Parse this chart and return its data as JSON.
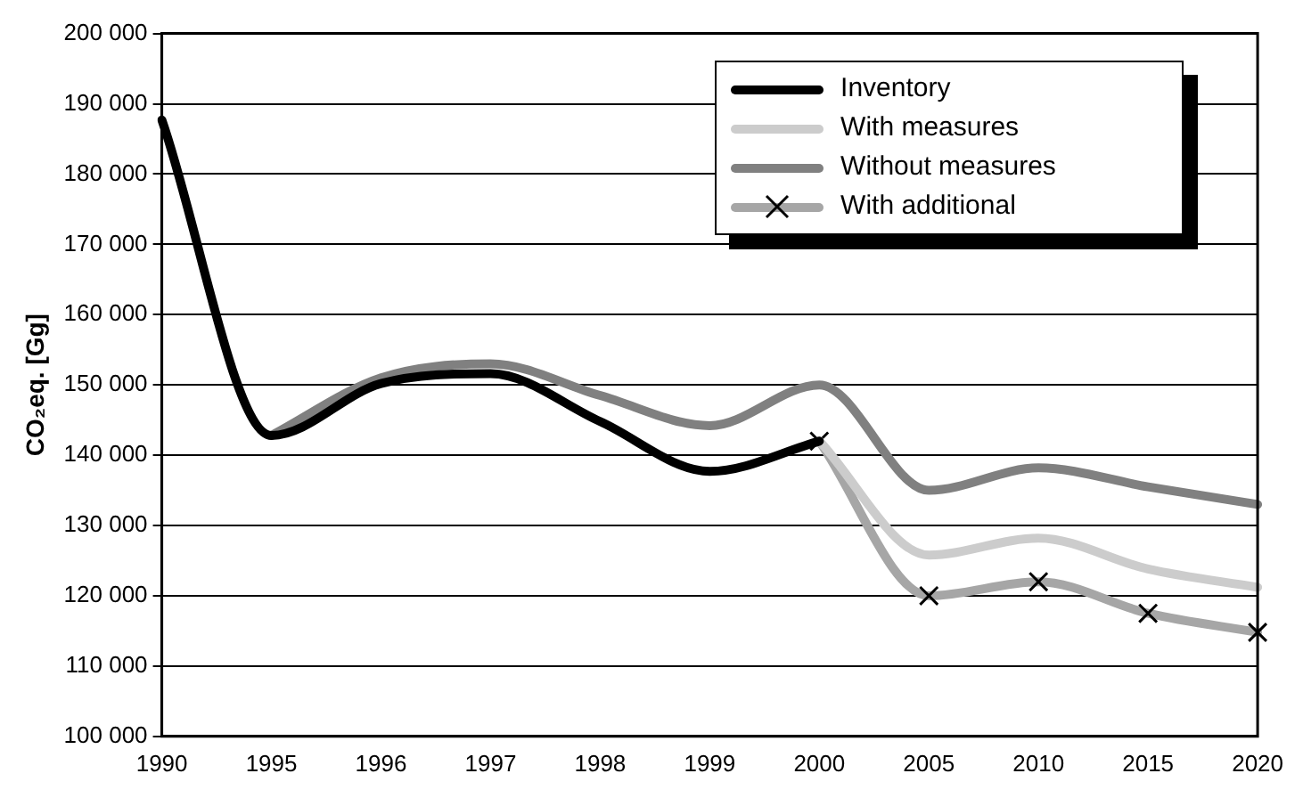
{
  "chart_data": {
    "type": "line",
    "ylabel": "CO₂eq. [Gg]",
    "categories": [
      "1990",
      "1995",
      "1996",
      "1997",
      "1998",
      "1999",
      "2000",
      "2005",
      "2010",
      "2015",
      "2020"
    ],
    "series": [
      {
        "name": "Inventory",
        "color": "#000000",
        "values": [
          187700,
          142800,
          150200,
          151600,
          144800,
          137700,
          142000,
          null,
          null,
          null,
          null
        ]
      },
      {
        "name": "With measures",
        "color": "#cccccc",
        "values": [
          null,
          null,
          null,
          null,
          null,
          null,
          142000,
          125800,
          128200,
          123800,
          121200
        ]
      },
      {
        "name": "Without measures",
        "color": "#808080",
        "values": [
          null,
          142800,
          151000,
          153000,
          148500,
          144200,
          150000,
          135000,
          138200,
          135500,
          133000
        ]
      },
      {
        "name": "With additional",
        "color": "#a6a6a6",
        "values": [
          null,
          null,
          null,
          null,
          null,
          null,
          142000,
          120000,
          122000,
          117500,
          114800
        ],
        "marker": "cross"
      }
    ],
    "ylim": [
      100000,
      200000
    ],
    "yticks": [
      {
        "value": 100000,
        "label": "100 000"
      },
      {
        "value": 110000,
        "label": "110 000"
      },
      {
        "value": 120000,
        "label": "120 000"
      },
      {
        "value": 130000,
        "label": "130 000"
      },
      {
        "value": 140000,
        "label": "140 000"
      },
      {
        "value": 150000,
        "label": "150 000"
      },
      {
        "value": 160000,
        "label": "160 000"
      },
      {
        "value": 170000,
        "label": "170 000"
      },
      {
        "value": 180000,
        "label": "180 000"
      },
      {
        "value": 190000,
        "label": "190 000"
      },
      {
        "value": 200000,
        "label": "200 000"
      }
    ],
    "grid": "y",
    "legend": "top right",
    "marker": "none"
  }
}
